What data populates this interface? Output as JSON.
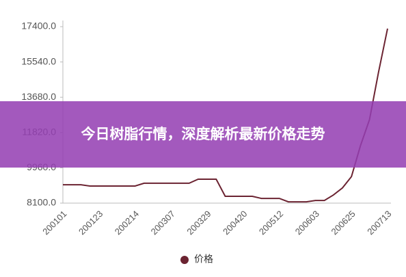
{
  "chart_data": {
    "type": "line",
    "categories": [
      "200101",
      null,
      null,
      null,
      "200123",
      null,
      null,
      null,
      "200214",
      null,
      null,
      null,
      "200307",
      null,
      null,
      null,
      "200329",
      null,
      null,
      null,
      "200420",
      null,
      null,
      null,
      "200512",
      null,
      null,
      null,
      "200603",
      null,
      null,
      null,
      "200625",
      null,
      null,
      null,
      "200713"
    ],
    "series": [
      {
        "name": "价格",
        "color": "#6b2331",
        "values": [
          9070,
          9070,
          9070,
          9000,
          9000,
          9000,
          9000,
          9000,
          9000,
          9150,
          9150,
          9150,
          9150,
          9150,
          9150,
          9360,
          9360,
          9360,
          8460,
          8460,
          8460,
          8460,
          8350,
          8350,
          8350,
          8170,
          8170,
          8170,
          8240,
          8240,
          8530,
          8900,
          9500,
          11130,
          12500,
          15000,
          17300
        ]
      }
    ],
    "ylim": [
      8100,
      17400
    ],
    "yticks": [
      {
        "value": 8100,
        "label": "8100.0"
      },
      {
        "value": 9960,
        "label": "9960.0"
      },
      {
        "value": 11820,
        "label": "11820.0"
      },
      {
        "value": 13680,
        "label": "13680.0"
      },
      {
        "value": 15540,
        "label": "15540.0"
      },
      {
        "value": 17400,
        "label": "17400.0"
      }
    ],
    "grid": false,
    "legend": "bottom"
  },
  "banner": {
    "title": "今日树脂行情，深度解析最新价格走势"
  }
}
